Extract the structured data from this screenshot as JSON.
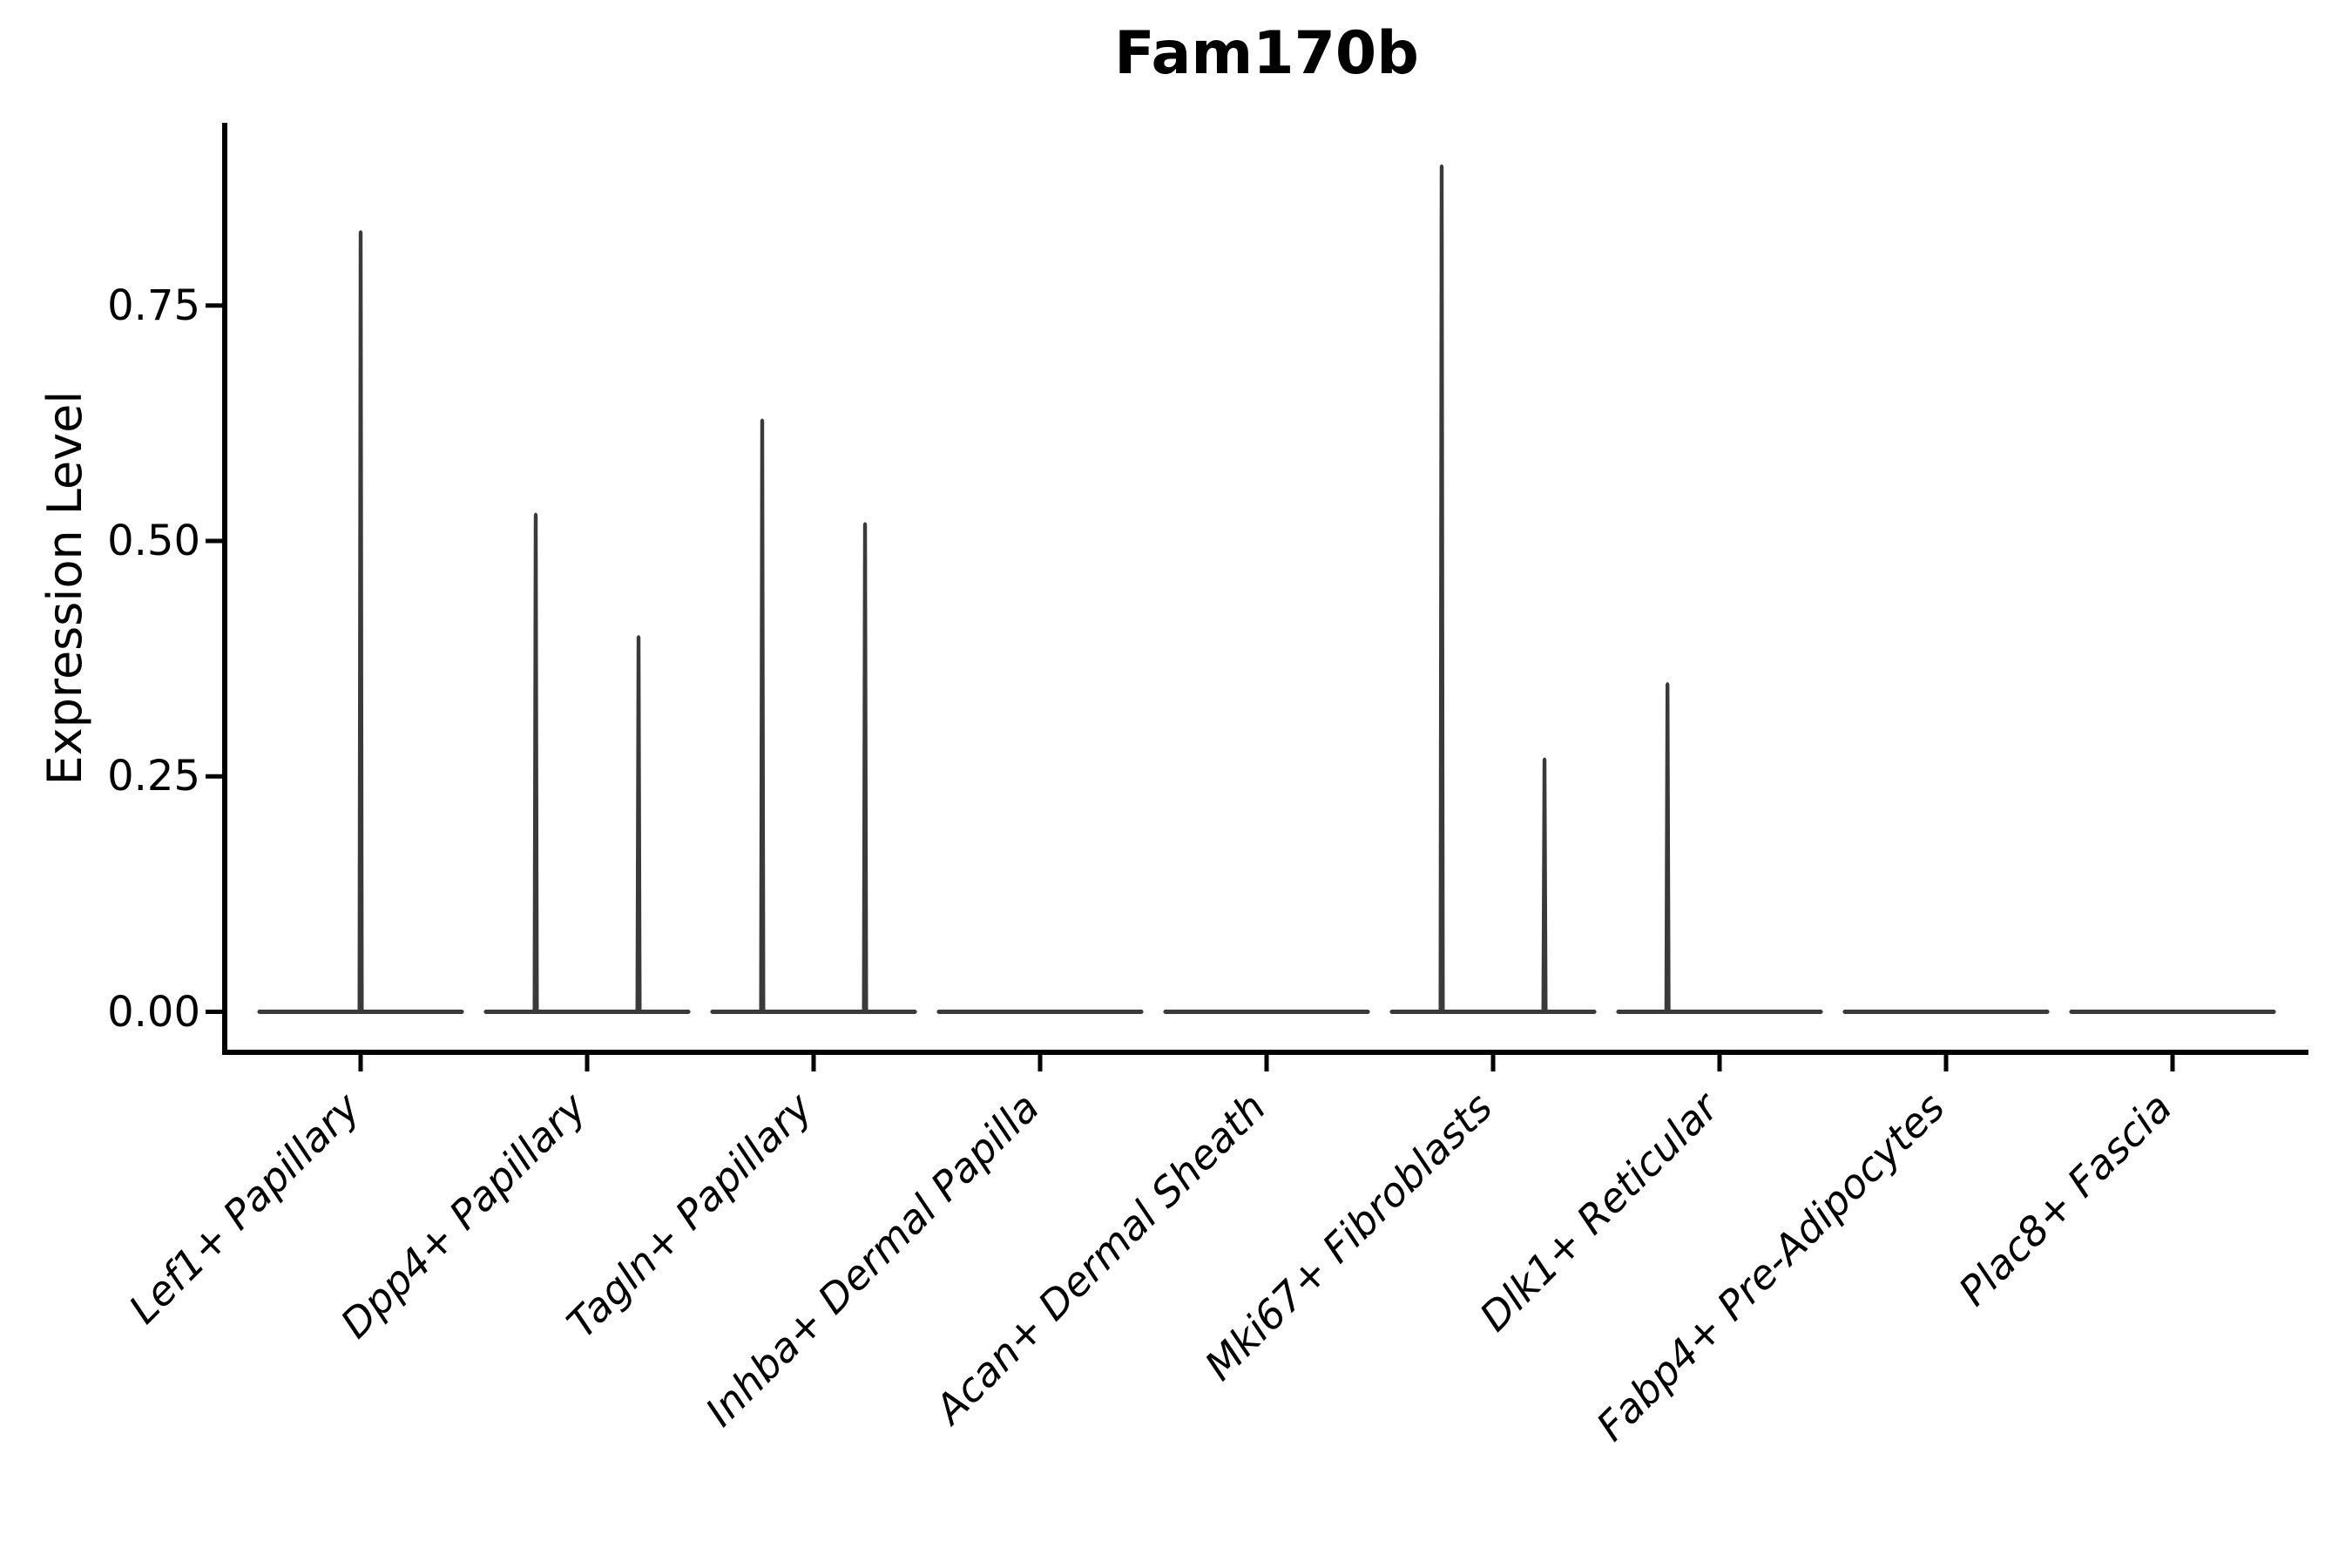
{
  "figure": {
    "background": "#ffffff"
  },
  "chart_data": {
    "type": "violin",
    "title": "Fam170b",
    "xlabel": "",
    "ylabel": "Expression Level",
    "categories": [
      "Lef1+ Papillary",
      "Dpp4+ Papillary",
      "Tagln+ Papillary",
      "Inhba+ Dermal Papilla",
      "Acan+ Dermal Sheath",
      "Mki67+ Fibroblasts",
      "Dlk1+ Reticular",
      "Fabp4+ Pre-Adipocytes",
      "Plac8+ Fascia"
    ],
    "violins": [
      {
        "label": "Lef1+ Papillary",
        "base_halfwidth": 0.458,
        "spikes": [
          {
            "offset": 0.0,
            "max": 0.83
          }
        ]
      },
      {
        "label": "Dpp4+ Papillary",
        "base_halfwidth": 0.458,
        "spikes": [
          {
            "offset": -0.227,
            "max": 0.53
          },
          {
            "offset": 0.227,
            "max": 0.4
          }
        ]
      },
      {
        "label": "Tagln+ Papillary",
        "base_halfwidth": 0.458,
        "spikes": [
          {
            "offset": -0.227,
            "max": 0.63
          },
          {
            "offset": 0.227,
            "max": 0.52
          }
        ]
      },
      {
        "label": "Inhba+ Dermal Papilla",
        "base_halfwidth": 0.458,
        "spikes": []
      },
      {
        "label": "Acan+ Dermal Sheath",
        "base_halfwidth": 0.458,
        "spikes": []
      },
      {
        "label": "Mki67+ Fibroblasts",
        "base_halfwidth": 0.458,
        "spikes": [
          {
            "offset": -0.227,
            "max": 0.9
          },
          {
            "offset": 0.227,
            "max": 0.27
          }
        ]
      },
      {
        "label": "Dlk1+ Reticular",
        "base_halfwidth": 0.458,
        "spikes": [
          {
            "offset": -0.23,
            "max": 0.35
          }
        ]
      },
      {
        "label": "Fabp4+ Pre-Adipocytes",
        "base_halfwidth": 0.458,
        "spikes": []
      },
      {
        "label": "Plac8+ Fascia",
        "base_halfwidth": 0.458,
        "spikes": []
      }
    ],
    "ytick_labels": [
      "0.00",
      "0.25",
      "0.50",
      "0.75"
    ],
    "ytick_values": [
      0.0,
      0.25,
      0.5,
      0.75
    ],
    "ylim": [
      -0.043,
      0.944
    ],
    "xlim": [
      0.4,
      9.6
    ],
    "grid": false,
    "legend": "none",
    "colors": {
      "violin": "#3a3a3a",
      "axis": "#000000",
      "text": "#000000",
      "background": "#ffffff"
    }
  }
}
